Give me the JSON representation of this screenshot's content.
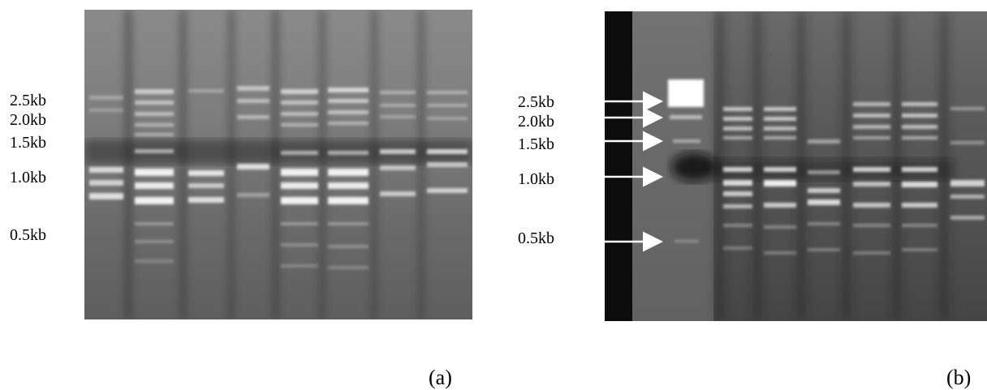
{
  "panel_a": {
    "label": "(a)",
    "markers": [
      "2.5kb",
      "2.0kb",
      "1.5kb",
      "1.0kb",
      "0.5kb"
    ]
  },
  "panel_b": {
    "label": "(b)",
    "markers": [
      "2.5kb",
      "2.0kb",
      "1.5kb",
      "1.0kb",
      "0.5kb"
    ]
  }
}
